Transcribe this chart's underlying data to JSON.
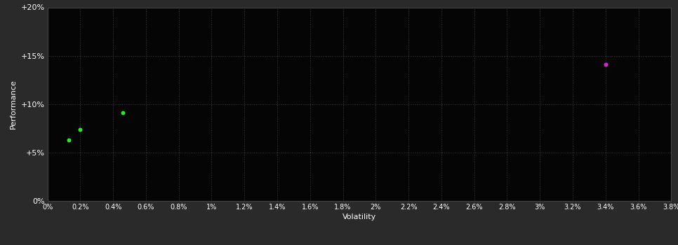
{
  "background_color": "#2a2a2a",
  "plot_bg_color": "#050505",
  "grid_color": "#3a3a3a",
  "border_color": "#444444",
  "text_color": "#ffffff",
  "xlabel": "Volatility",
  "ylabel": "Performance",
  "xlim": [
    0.0,
    0.038
  ],
  "ylim": [
    0.0,
    0.2
  ],
  "xtick_vals": [
    0.0,
    0.002,
    0.004,
    0.006,
    0.008,
    0.01,
    0.012,
    0.014,
    0.016,
    0.018,
    0.02,
    0.022,
    0.024,
    0.026,
    0.028,
    0.03,
    0.032,
    0.034,
    0.036,
    0.038
  ],
  "xtick_labels": [
    "0%",
    "0.2%",
    "0.4%",
    "0.6%",
    "0.8%",
    "1%",
    "1.2%",
    "1.4%",
    "1.6%",
    "1.8%",
    "2%",
    "2.2%",
    "2.4%",
    "2.6%",
    "2.8%",
    "3%",
    "3.2%",
    "3.4%",
    "3.6%",
    "3.8%"
  ],
  "ytick_vals": [
    0.0,
    0.05,
    0.1,
    0.15,
    0.2
  ],
  "ytick_labels": [
    "0%",
    "+5%",
    "+10%",
    "+15%",
    "+20%"
  ],
  "green_points": [
    [
      0.0013,
      0.063
    ],
    [
      0.002,
      0.074
    ],
    [
      0.0046,
      0.091
    ]
  ],
  "magenta_points": [
    [
      0.034,
      0.141
    ]
  ],
  "green_color": "#22ee22",
  "magenta_color": "#dd22dd",
  "point_size": 18
}
